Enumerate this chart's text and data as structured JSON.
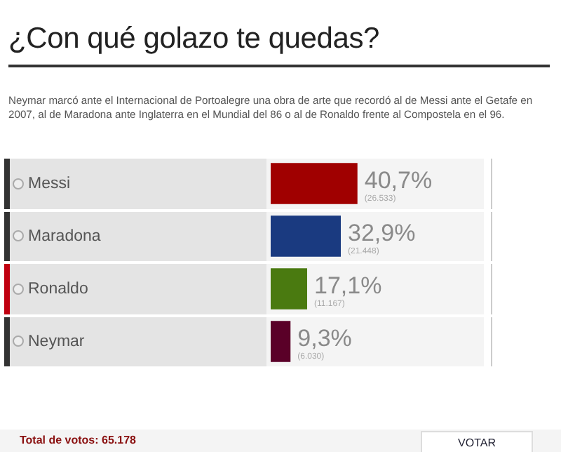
{
  "chart_data": {
    "type": "bar",
    "orientation": "horizontal",
    "title": "¿Con qué golazo te quedas?",
    "subtitle": "Neymar marcó ante el Internacional de Portoalegre una obra de arte que recordó al de Messi ante el Getafe en 2007, al de Maradona ante Inglaterra en el Mundial del 86 o al de Ronaldo frente al Compostela en el 96.",
    "categories": [
      "Messi",
      "Maradona",
      "Ronaldo",
      "Neymar"
    ],
    "values": [
      40.7,
      32.9,
      17.1,
      9.3
    ],
    "colors": [
      "#a00000",
      "#1a3a80",
      "#4a7a10",
      "#5a0028"
    ],
    "value_labels": [
      "40,7%",
      "32,9%",
      "17,1%",
      "9,3%"
    ],
    "xlim": [
      0,
      100
    ],
    "legend": false,
    "annotations": [
      "(26.533)",
      "(21.448)",
      "(11.167)",
      "(6.030)",
      "Total de votos: 65.178",
      "VOTAR"
    ]
  }
}
